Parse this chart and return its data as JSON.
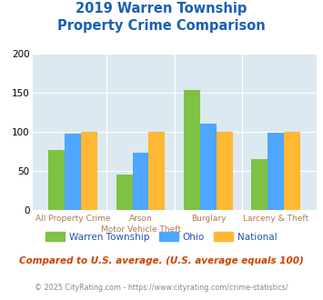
{
  "title_line1": "2019 Warren Township",
  "title_line2": "Property Crime Comparison",
  "cat_labels_line1": [
    "All Property Crime",
    "Arson",
    "Burglary",
    "Larceny & Theft"
  ],
  "cat_labels_line2": [
    "",
    "Motor Vehicle Theft",
    "",
    ""
  ],
  "warren": [
    77,
    46,
    154,
    65
  ],
  "ohio": [
    98,
    73,
    111,
    99
  ],
  "national": [
    100,
    100,
    100,
    100
  ],
  "warren_color": "#7dc243",
  "ohio_color": "#4da6ff",
  "national_color": "#ffb833",
  "bg_color": "#dce9f0",
  "ylim": [
    0,
    200
  ],
  "yticks": [
    0,
    50,
    100,
    150,
    200
  ],
  "title_color": "#1a5fb4",
  "xlabel_color": "#b07850",
  "legend_labels": [
    "Warren Township",
    "Ohio",
    "National"
  ],
  "legend_color": "#2255aa",
  "footnote1": "Compared to U.S. average. (U.S. average equals 100)",
  "footnote2": "© 2025 CityRating.com - https://www.cityrating.com/crime-statistics/",
  "footnote1_color": "#cc4400",
  "footnote2_color": "#888888"
}
